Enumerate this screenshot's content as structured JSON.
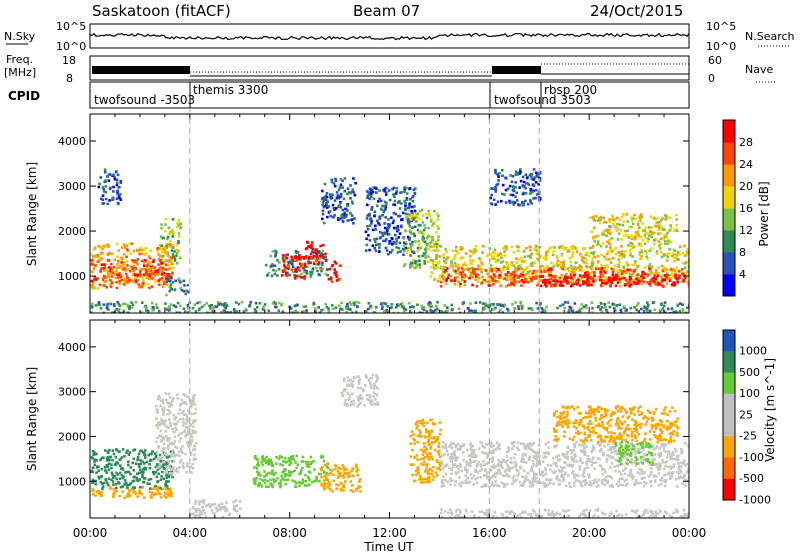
{
  "header": {
    "station": "Saskatoon (fitACF)",
    "beam": "Beam 07",
    "date": "24/Oct/2015"
  },
  "noise_panel": {
    "left_label": "N.Sky",
    "right_label": "N.Search",
    "left_ticks": [
      "10^5",
      "10^0"
    ],
    "right_ticks": [
      "10^5",
      "10^0"
    ]
  },
  "freq_panel": {
    "left_label_line1": "Freq.",
    "left_label_line2": "[MHz]",
    "right_label": "Nave",
    "left_ticks": [
      "18",
      "8"
    ],
    "right_ticks": [
      "60",
      "0"
    ]
  },
  "cpid": {
    "label": "CPID",
    "entries": [
      {
        "start_hour": 0,
        "end_hour": 4,
        "name": "twofsound -3503"
      },
      {
        "start_hour": 4,
        "end_hour": 16,
        "name": "themis 3300"
      },
      {
        "start_hour": 16,
        "end_hour": 18,
        "name": "twofsound 3503"
      },
      {
        "start_hour": 18,
        "end_hour": 24,
        "name": "rbsp 200"
      }
    ]
  },
  "power_panel": {
    "ylabel": "Slant Range [km]",
    "cbar_label": "Power [dB]",
    "cbar_ticks": [
      "28",
      "24",
      "20",
      "16",
      "12",
      "8",
      "4"
    ]
  },
  "velocity_panel": {
    "ylabel": "Slant Range [km]",
    "cbar_label": "Velocity [m s^-1]",
    "cbar_ticks": [
      "1000",
      "500",
      "100",
      "25",
      "-25",
      "-100",
      "-500",
      "-1000"
    ]
  },
  "colors": {
    "power": [
      "#0000ff",
      "#2a52be",
      "#2e8b57",
      "#7cc242",
      "#f2d400",
      "#ff9a00",
      "#ff4400",
      "#ff0000"
    ],
    "velocity": [
      "#2255bb",
      "#2e8b57",
      "#66cc33",
      "#bfbfbf",
      "#bfbfbf",
      "#ffa500",
      "#ff6a00",
      "#ff0000"
    ],
    "gray": "#c8c8c0"
  },
  "chart_data": {
    "type": "heatmap",
    "x_axis": {
      "label": "Time UT",
      "ticks": [
        "00:00",
        "04:00",
        "08:00",
        "12:00",
        "16:00",
        "20:00",
        "00:00"
      ],
      "range_hours": [
        0,
        24
      ]
    },
    "y_axis": {
      "label": "Slant Range [km]",
      "ticks": [
        "1000",
        "2000",
        "3000",
        "4000"
      ],
      "range_km": [
        180,
        4600
      ]
    },
    "mode_boundaries_hours": [
      4,
      16,
      18
    ],
    "power_patches": [
      {
        "t0": 0.0,
        "t1": 3.3,
        "r0": 750,
        "r1": 1750,
        "level": 5
      },
      {
        "t0": 0.0,
        "t1": 3.3,
        "r0": 900,
        "r1": 1400,
        "level": 6
      },
      {
        "t0": 2.8,
        "t1": 3.6,
        "r0": 1300,
        "r1": 2300,
        "level": 3
      },
      {
        "t0": 3.0,
        "t1": 3.9,
        "r0": 600,
        "r1": 1000,
        "level": 2
      },
      {
        "t0": 0.3,
        "t1": 1.2,
        "r0": 2600,
        "r1": 3400,
        "level": 1
      },
      {
        "t0": 7.0,
        "t1": 9.5,
        "r0": 1000,
        "r1": 1600,
        "level": 2
      },
      {
        "t0": 7.6,
        "t1": 8.6,
        "r0": 950,
        "r1": 1500,
        "level": 7
      },
      {
        "t0": 8.6,
        "t1": 9.4,
        "r0": 1200,
        "r1": 1800,
        "level": 7
      },
      {
        "t0": 9.5,
        "t1": 10.0,
        "r0": 900,
        "r1": 1350,
        "level": 7
      },
      {
        "t0": 9.2,
        "t1": 10.6,
        "r0": 2200,
        "r1": 3200,
        "level": 1
      },
      {
        "t0": 11.0,
        "t1": 13.0,
        "r0": 1500,
        "r1": 3000,
        "level": 1
      },
      {
        "t0": 12.5,
        "t1": 14.0,
        "r0": 1200,
        "r1": 2500,
        "level": 3
      },
      {
        "t0": 13.6,
        "t1": 24.0,
        "r0": 900,
        "r1": 1700,
        "level": 4
      },
      {
        "t0": 14.0,
        "t1": 24.0,
        "r0": 800,
        "r1": 1200,
        "level": 6
      },
      {
        "t0": 18.0,
        "t1": 24.0,
        "r0": 800,
        "r1": 1050,
        "level": 7
      },
      {
        "t0": 16.0,
        "t1": 18.0,
        "r0": 2600,
        "r1": 3400,
        "level": 1
      },
      {
        "t0": 20.0,
        "t1": 23.5,
        "r0": 1700,
        "r1": 2400,
        "level": 4
      },
      {
        "t0": 0.0,
        "t1": 24.0,
        "r0": 200,
        "r1": 450,
        "level": 2
      }
    ],
    "velocity_patches": [
      {
        "t0": 0.0,
        "t1": 3.3,
        "r0": 850,
        "r1": 1750,
        "color": "#2e8b57"
      },
      {
        "t0": 0.0,
        "t1": 3.3,
        "r0": 650,
        "r1": 900,
        "color": "#ffa500"
      },
      {
        "t0": 2.6,
        "t1": 4.2,
        "r0": 1200,
        "r1": 3000,
        "color": "gray"
      },
      {
        "t0": 4.0,
        "t1": 6.0,
        "r0": 200,
        "r1": 600,
        "color": "gray"
      },
      {
        "t0": 6.5,
        "t1": 9.5,
        "r0": 900,
        "r1": 1600,
        "color": "#66cc33"
      },
      {
        "t0": 9.2,
        "t1": 10.8,
        "r0": 800,
        "r1": 1400,
        "color": "#ffa500"
      },
      {
        "t0": 10.0,
        "t1": 11.5,
        "r0": 2700,
        "r1": 3400,
        "color": "gray"
      },
      {
        "t0": 12.8,
        "t1": 14.0,
        "r0": 1000,
        "r1": 2400,
        "color": "#ffa500"
      },
      {
        "t0": 14.0,
        "t1": 24.0,
        "r0": 900,
        "r1": 1900,
        "color": "gray"
      },
      {
        "t0": 14.0,
        "t1": 24.0,
        "r0": 200,
        "r1": 400,
        "color": "gray"
      },
      {
        "t0": 18.5,
        "t1": 23.5,
        "r0": 1900,
        "r1": 2700,
        "color": "#ffa500"
      },
      {
        "t0": 21.0,
        "t1": 22.5,
        "r0": 1400,
        "r1": 1900,
        "color": "#66cc33"
      }
    ]
  }
}
